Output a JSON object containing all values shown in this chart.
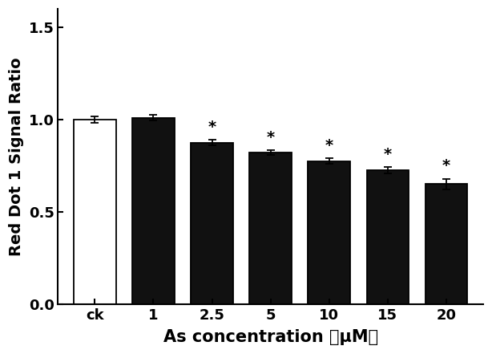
{
  "categories": [
    "ck",
    "1",
    "2.5",
    "5",
    "10",
    "15",
    "20"
  ],
  "values": [
    1.0,
    1.01,
    0.875,
    0.82,
    0.775,
    0.725,
    0.65
  ],
  "errors": [
    0.016,
    0.016,
    0.016,
    0.013,
    0.016,
    0.016,
    0.028
  ],
  "bar_colors": [
    "white",
    "#111111",
    "#111111",
    "#111111",
    "#111111",
    "#111111",
    "#111111"
  ],
  "bar_edgecolors": [
    "black",
    "black",
    "black",
    "black",
    "black",
    "black",
    "black"
  ],
  "significance": [
    false,
    false,
    true,
    true,
    true,
    true,
    true
  ],
  "ylabel": "Red Dot 1 Signal Ratio",
  "xlabel": "As concentration （μM）",
  "ylim": [
    0.0,
    1.6
  ],
  "yticks": [
    0.0,
    0.5,
    1.0,
    1.5
  ],
  "ytick_labels": [
    "0.0",
    "0.5",
    "1.0",
    "1.5"
  ],
  "title": "",
  "bar_width": 0.72,
  "background_color": "#ffffff",
  "star_fontsize": 14,
  "axis_label_fontsize": 14,
  "tick_fontsize": 13
}
